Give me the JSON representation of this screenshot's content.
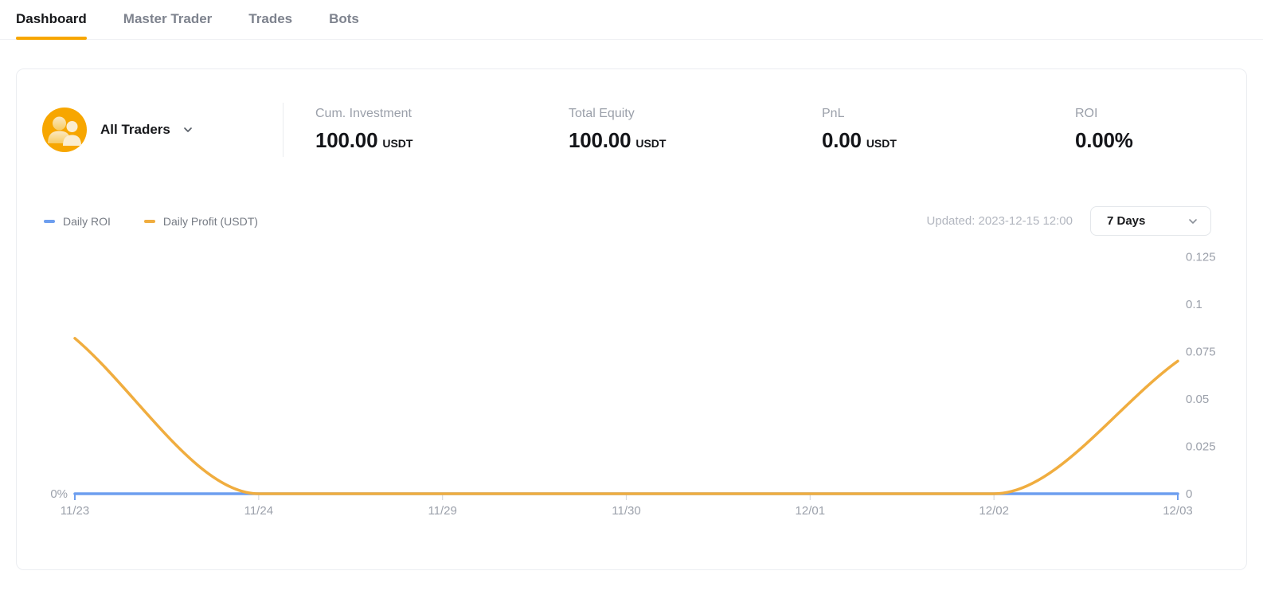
{
  "tabs": [
    {
      "label": "Dashboard",
      "active": true
    },
    {
      "label": "Master Trader",
      "active": false
    },
    {
      "label": "Trades",
      "active": false
    },
    {
      "label": "Bots",
      "active": false
    }
  ],
  "card": {
    "trader_selector": {
      "label": "All Traders",
      "avatar_icon": "all-traders-people-icon"
    },
    "stats": [
      {
        "label": "Cum. Investment",
        "value": "100.00",
        "unit": "USDT"
      },
      {
        "label": "Total Equity",
        "value": "100.00",
        "unit": "USDT"
      },
      {
        "label": "PnL",
        "value": "0.00",
        "unit": "USDT"
      },
      {
        "label": "ROI",
        "value": "0.00%",
        "unit": ""
      }
    ],
    "updated": "Updated: 2023-12-15 12:00",
    "range_selector": {
      "value": "7 Days"
    }
  },
  "chart_data": {
    "type": "line",
    "x": [
      "11/23",
      "11/24",
      "11/29",
      "11/30",
      "12/01",
      "12/02",
      "12/03"
    ],
    "series": [
      {
        "name": "Daily ROI",
        "color": "#6D9EEF",
        "values": [
          0,
          0,
          0,
          0,
          0,
          0,
          0
        ],
        "axis": "left"
      },
      {
        "name": "Daily Profit (USDT)",
        "color": "#F0AD3F",
        "values": [
          0.082,
          0,
          0,
          0,
          0,
          0,
          0.07
        ],
        "axis": "right"
      }
    ],
    "right_axis_tick_labels": [
      "0.125",
      "0.1",
      "0.075",
      "0.05",
      "0.025",
      "0"
    ],
    "right_axis_tick_values": [
      0.125,
      0.1,
      0.075,
      0.05,
      0.025,
      0
    ],
    "left_axis_label": "0%",
    "right_ylim": [
      0,
      0.13
    ],
    "grid": false,
    "legend_position": "top-left",
    "smooth": true
  },
  "colors": {
    "accent": "#F7A600",
    "roi_line": "#6D9EEF",
    "profit_line": "#F0AD3F",
    "tick": "#d7dade"
  }
}
